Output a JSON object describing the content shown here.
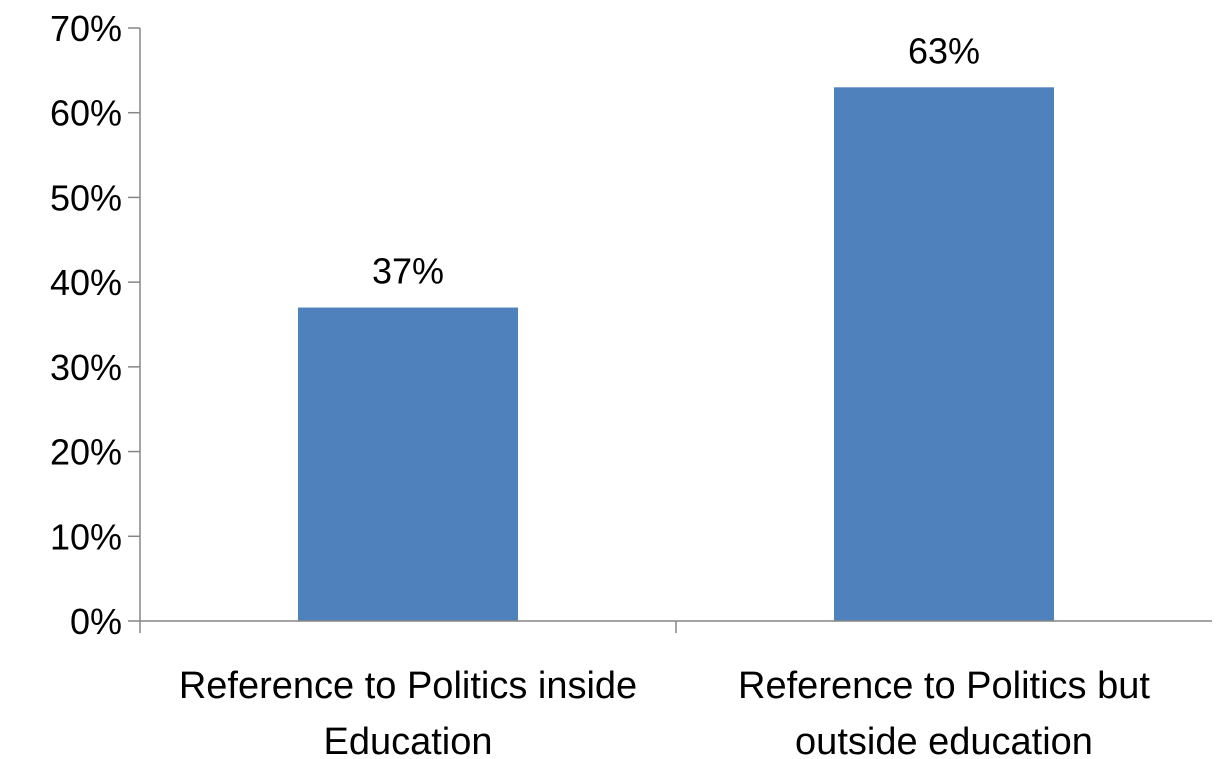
{
  "chart_data": {
    "type": "bar",
    "title": "",
    "xlabel": "",
    "ylabel": "",
    "categories": [
      [
        "Reference to Politics inside",
        "Education"
      ],
      [
        "Reference to Politics but",
        "outside education"
      ]
    ],
    "values": [
      37,
      63
    ],
    "data_labels": [
      "37%",
      "63%"
    ],
    "ylim": [
      0,
      70
    ],
    "y_ticks": [
      0,
      10,
      20,
      30,
      40,
      50,
      60,
      70
    ],
    "y_tick_labels": [
      "0%",
      "10%",
      "20%",
      "30%",
      "40%",
      "50%",
      "60%",
      "70%"
    ],
    "grid": false,
    "legend": "none",
    "bar_color": "#4F81BD",
    "axis_color": "#868686"
  }
}
